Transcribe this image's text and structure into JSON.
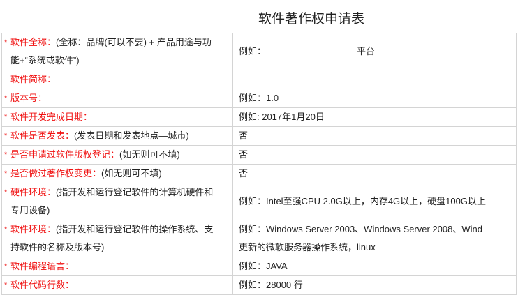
{
  "title": "软件著作权申请表",
  "rows": [
    {
      "required": true,
      "label": "软件全称：",
      "hint": "(全称：品牌(可以不要) + 产品用途与功",
      "hint2": "能+“系统或软件”)",
      "value": "例如：",
      "value_extra": "平台"
    },
    {
      "required": false,
      "label": "软件简称：",
      "hint": "",
      "value": ""
    },
    {
      "required": true,
      "label": "版本号：",
      "hint": "",
      "value": "例如：1.0"
    },
    {
      "required": true,
      "label": "软件开发完成日期：",
      "hint": "",
      "value": "例如: 2017年1月20日"
    },
    {
      "required": true,
      "label": "软件是否发表：",
      "hint": "(发表日期和发表地点—城市)",
      "value": "否"
    },
    {
      "required": true,
      "label": "是否申请过软件版权登记：",
      "hint": "(如无则可不填)",
      "value": "否"
    },
    {
      "required": true,
      "label": "是否做过著作权变更：",
      "hint": "(如无则可不填)",
      "value": "否"
    },
    {
      "required": true,
      "label": "硬件环境：",
      "hint": "(指开发和运行登记软件的计算机硬件和",
      "hint2": "专用设备)",
      "value": "例如：Intel至强CPU 2.0G以上，内存4G以上，硬盘100G以上"
    },
    {
      "required": true,
      "label": "软件环境：",
      "hint": "(指开发和运行登记软件的操作系统、支",
      "hint2": "持软件的名称及版本号)",
      "value": "例如：Windows Server 2003、Windows Server 2008、Wind",
      "value2": "更新的微软服务器操作系统，linux"
    },
    {
      "required": true,
      "label": "软件编程语言：",
      "hint": "",
      "value": "例如：JAVA"
    },
    {
      "required": true,
      "label": "软件代码行数：",
      "hint": "",
      "value": "例如：28000 行"
    }
  ],
  "required_mark": "*",
  "colors": {
    "required_label": "#f01010",
    "border": "#d4d4d4"
  }
}
